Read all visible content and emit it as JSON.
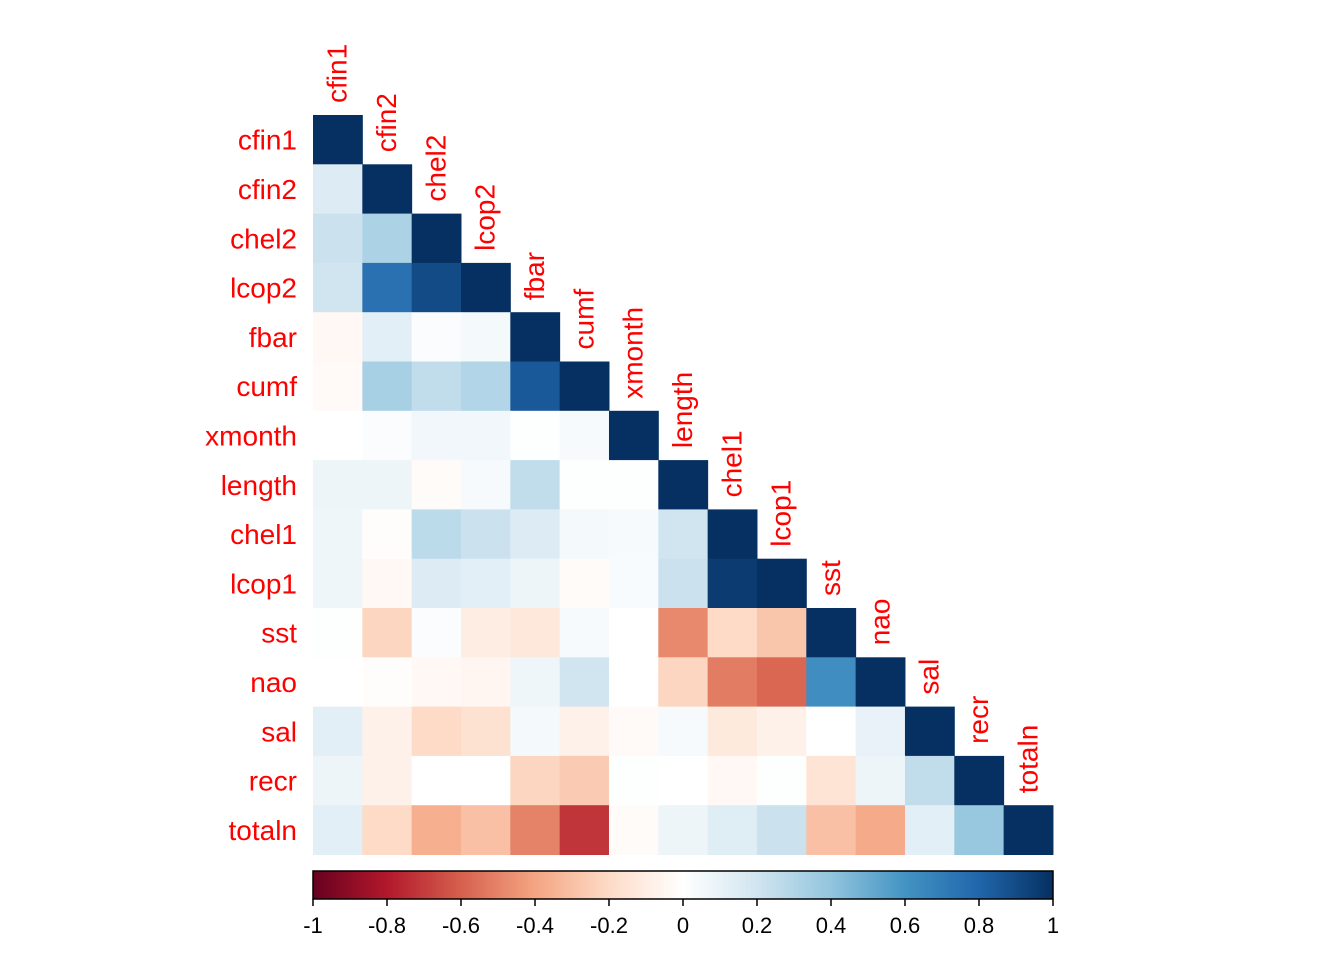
{
  "chart_data": {
    "type": "heatmap",
    "title": "",
    "variables": [
      "cfin1",
      "cfin2",
      "chel2",
      "lcop2",
      "fbar",
      "cumf",
      "xmonth",
      "length",
      "chel1",
      "lcop1",
      "sst",
      "nao",
      "sal",
      "recr",
      "totaln"
    ],
    "layout": "lower-triangle",
    "matrix": [
      [
        1
      ],
      [
        0.15,
        1
      ],
      [
        0.22,
        0.32,
        1
      ],
      [
        0.2,
        0.75,
        0.9,
        1
      ],
      [
        -0.04,
        0.12,
        0.02,
        0.05,
        1
      ],
      [
        -0.03,
        0.33,
        0.25,
        0.3,
        0.85,
        1
      ],
      [
        0.0,
        0.02,
        0.06,
        0.06,
        0.01,
        0.04,
        1
      ],
      [
        0.08,
        0.08,
        -0.02,
        0.04,
        0.25,
        0.01,
        0.01,
        1
      ],
      [
        0.07,
        -0.01,
        0.27,
        0.22,
        0.15,
        0.05,
        0.04,
        0.2,
        1
      ],
      [
        0.07,
        -0.04,
        0.15,
        0.12,
        0.08,
        -0.02,
        0.03,
        0.22,
        0.96,
        1
      ],
      [
        0.01,
        -0.22,
        0.02,
        -0.1,
        -0.13,
        0.04,
        0.0,
        -0.48,
        -0.2,
        -0.28,
        1
      ],
      [
        0.0,
        -0.01,
        -0.04,
        -0.05,
        0.07,
        0.2,
        0.0,
        -0.22,
        -0.52,
        -0.58,
        0.62,
        1
      ],
      [
        0.12,
        -0.08,
        -0.2,
        -0.16,
        0.05,
        -0.08,
        -0.03,
        0.04,
        -0.12,
        -0.08,
        0.0,
        0.1,
        1
      ],
      [
        0.08,
        -0.08,
        0.0,
        0.0,
        -0.22,
        -0.26,
        0.01,
        0.0,
        -0.04,
        0.01,
        -0.15,
        0.08,
        0.25,
        1
      ],
      [
        0.12,
        -0.2,
        -0.36,
        -0.3,
        -0.5,
        -0.72,
        -0.02,
        0.08,
        0.14,
        0.22,
        -0.3,
        -0.38,
        0.12,
        0.38,
        1
      ]
    ],
    "colorbar": {
      "min": -1,
      "max": 1,
      "ticks": [
        "-1",
        "-0.8",
        "-0.6",
        "-0.4",
        "-0.2",
        "0",
        "0.2",
        "0.4",
        "0.6",
        "0.8",
        "1"
      ],
      "colors": [
        "#67001f",
        "#b2182b",
        "#d6604d",
        "#f4a582",
        "#fddbc7",
        "#ffffff",
        "#d1e5f0",
        "#92c5de",
        "#4393c3",
        "#2166ac",
        "#053061"
      ]
    }
  }
}
